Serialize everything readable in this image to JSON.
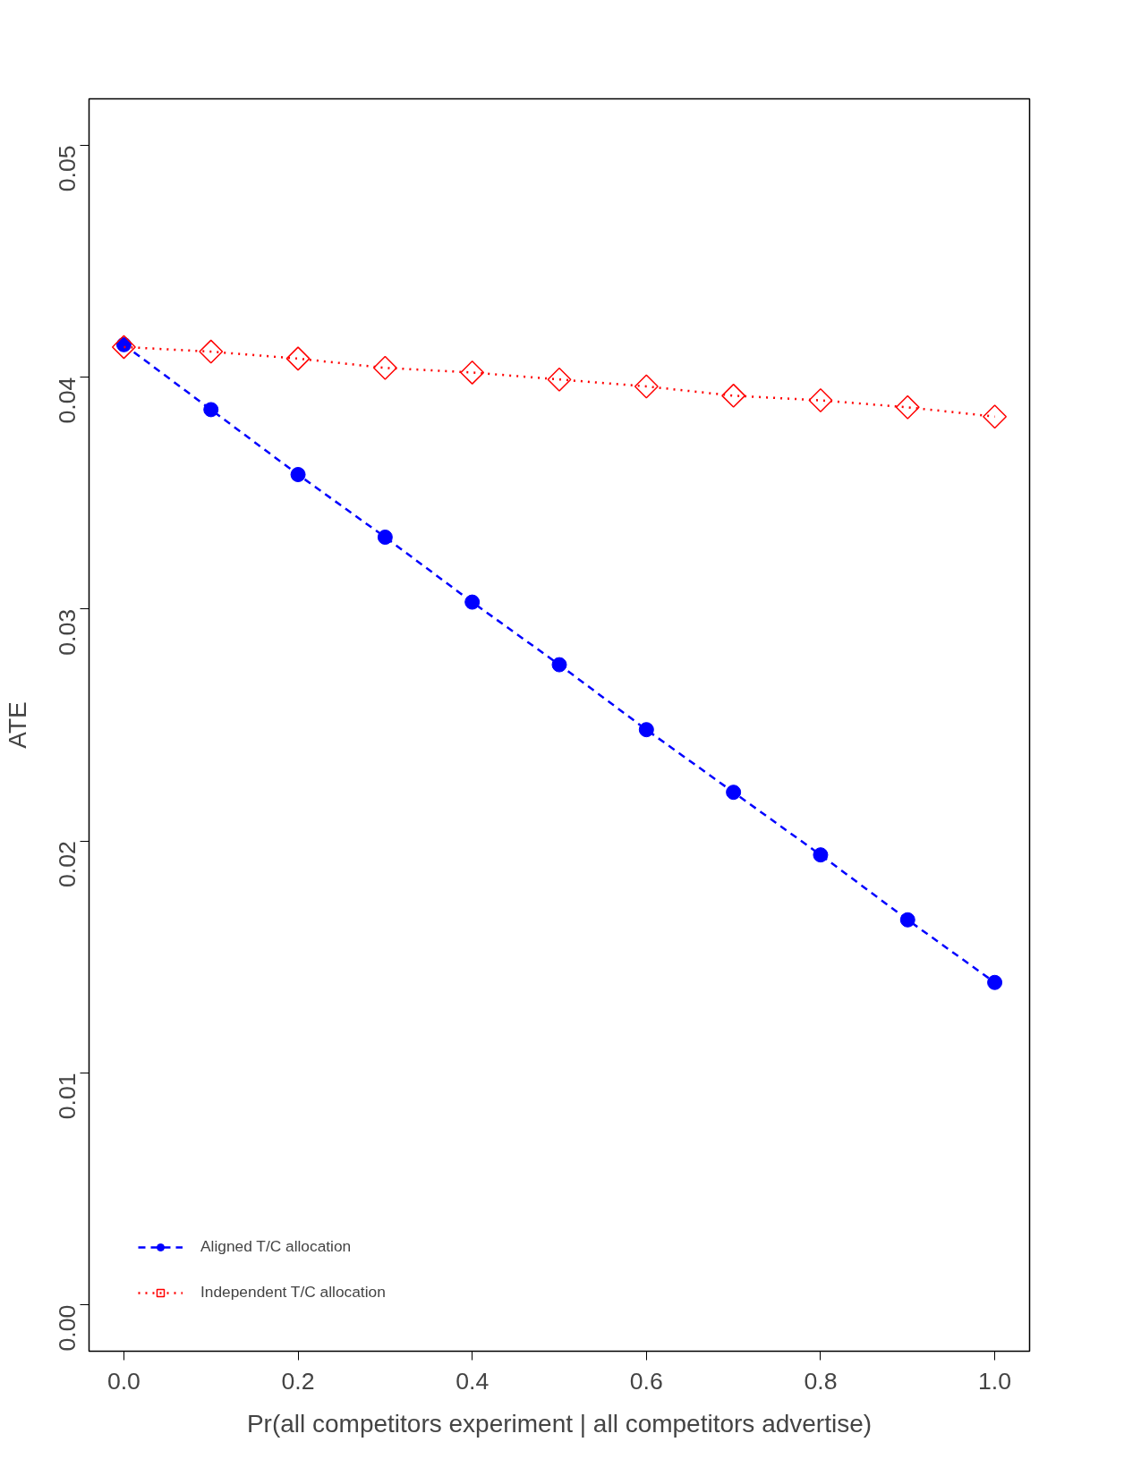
{
  "chart_data": {
    "type": "line",
    "xlabel": "Pr(all competitors experiment | all competitors advertise)",
    "ylabel": "ATE",
    "x": [
      0.0,
      0.1,
      0.2,
      0.3,
      0.4,
      0.5,
      0.6,
      0.7,
      0.8,
      0.9,
      1.0
    ],
    "series": [
      {
        "name": "Aligned T/C allocation",
        "color": "#0000ff",
        "marker": "circle",
        "line_style": "dashed",
        "values": [
          0.0414,
          0.0386,
          0.0358,
          0.0331,
          0.0303,
          0.0276,
          0.0248,
          0.0221,
          0.0194,
          0.0166,
          0.0139
        ]
      },
      {
        "name": "Independent T/C allocation",
        "color": "#ff0000",
        "marker": "diamond",
        "line_style": "dotted",
        "values": [
          0.0413,
          0.0411,
          0.0408,
          0.0404,
          0.0402,
          0.0399,
          0.0396,
          0.0392,
          0.039,
          0.0387,
          0.0383
        ]
      }
    ],
    "xlim": [
      -0.04,
      1.04
    ],
    "ylim": [
      -0.002,
      0.052
    ],
    "xticks": [
      {
        "value": 0.0,
        "label": "0.0"
      },
      {
        "value": 0.2,
        "label": "0.2"
      },
      {
        "value": 0.4,
        "label": "0.4"
      },
      {
        "value": 0.6,
        "label": "0.6"
      },
      {
        "value": 0.8,
        "label": "0.8"
      },
      {
        "value": 1.0,
        "label": "1.0"
      }
    ],
    "yticks": [
      {
        "value": 0.0,
        "label": "0.00"
      },
      {
        "value": 0.01,
        "label": "0.01"
      },
      {
        "value": 0.02,
        "label": "0.02"
      },
      {
        "value": 0.03,
        "label": "0.03"
      },
      {
        "value": 0.04,
        "label": "0.04"
      },
      {
        "value": 0.05,
        "label": "0.05"
      }
    ],
    "legend": "bottom left",
    "grid": false
  }
}
